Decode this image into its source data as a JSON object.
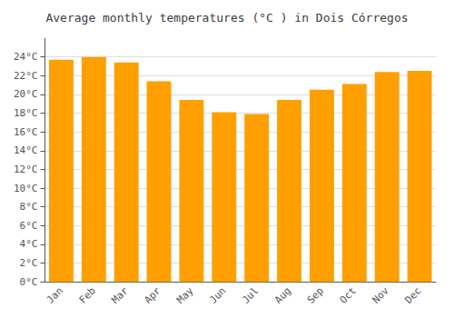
{
  "chart_data": {
    "type": "bar",
    "title": "Average monthly temperatures (°C ) in Dois Córregos",
    "categories": [
      "Jan",
      "Feb",
      "Mar",
      "Apr",
      "May",
      "Jun",
      "Jul",
      "Aug",
      "Sep",
      "Oct",
      "Nov",
      "Dec"
    ],
    "values": [
      23.7,
      24.0,
      23.4,
      21.4,
      19.4,
      18.1,
      17.9,
      19.4,
      20.5,
      21.1,
      22.4,
      22.5
    ],
    "color": "#FFA000",
    "ylim": [
      0,
      26
    ],
    "yticks": [
      {
        "value": 0,
        "label": "0°C"
      },
      {
        "value": 2,
        "label": "2°C"
      },
      {
        "value": 4,
        "label": "4°C"
      },
      {
        "value": 6,
        "label": "6°C"
      },
      {
        "value": 8,
        "label": "8°C"
      },
      {
        "value": 10,
        "label": "10°C"
      },
      {
        "value": 12,
        "label": "12°C"
      },
      {
        "value": 14,
        "label": "14°C"
      },
      {
        "value": 16,
        "label": "16°C"
      },
      {
        "value": 18,
        "label": "18°C"
      },
      {
        "value": 20,
        "label": "20°C"
      },
      {
        "value": 22,
        "label": "22°C"
      },
      {
        "value": 24,
        "label": "24°C"
      }
    ],
    "grid": true
  }
}
